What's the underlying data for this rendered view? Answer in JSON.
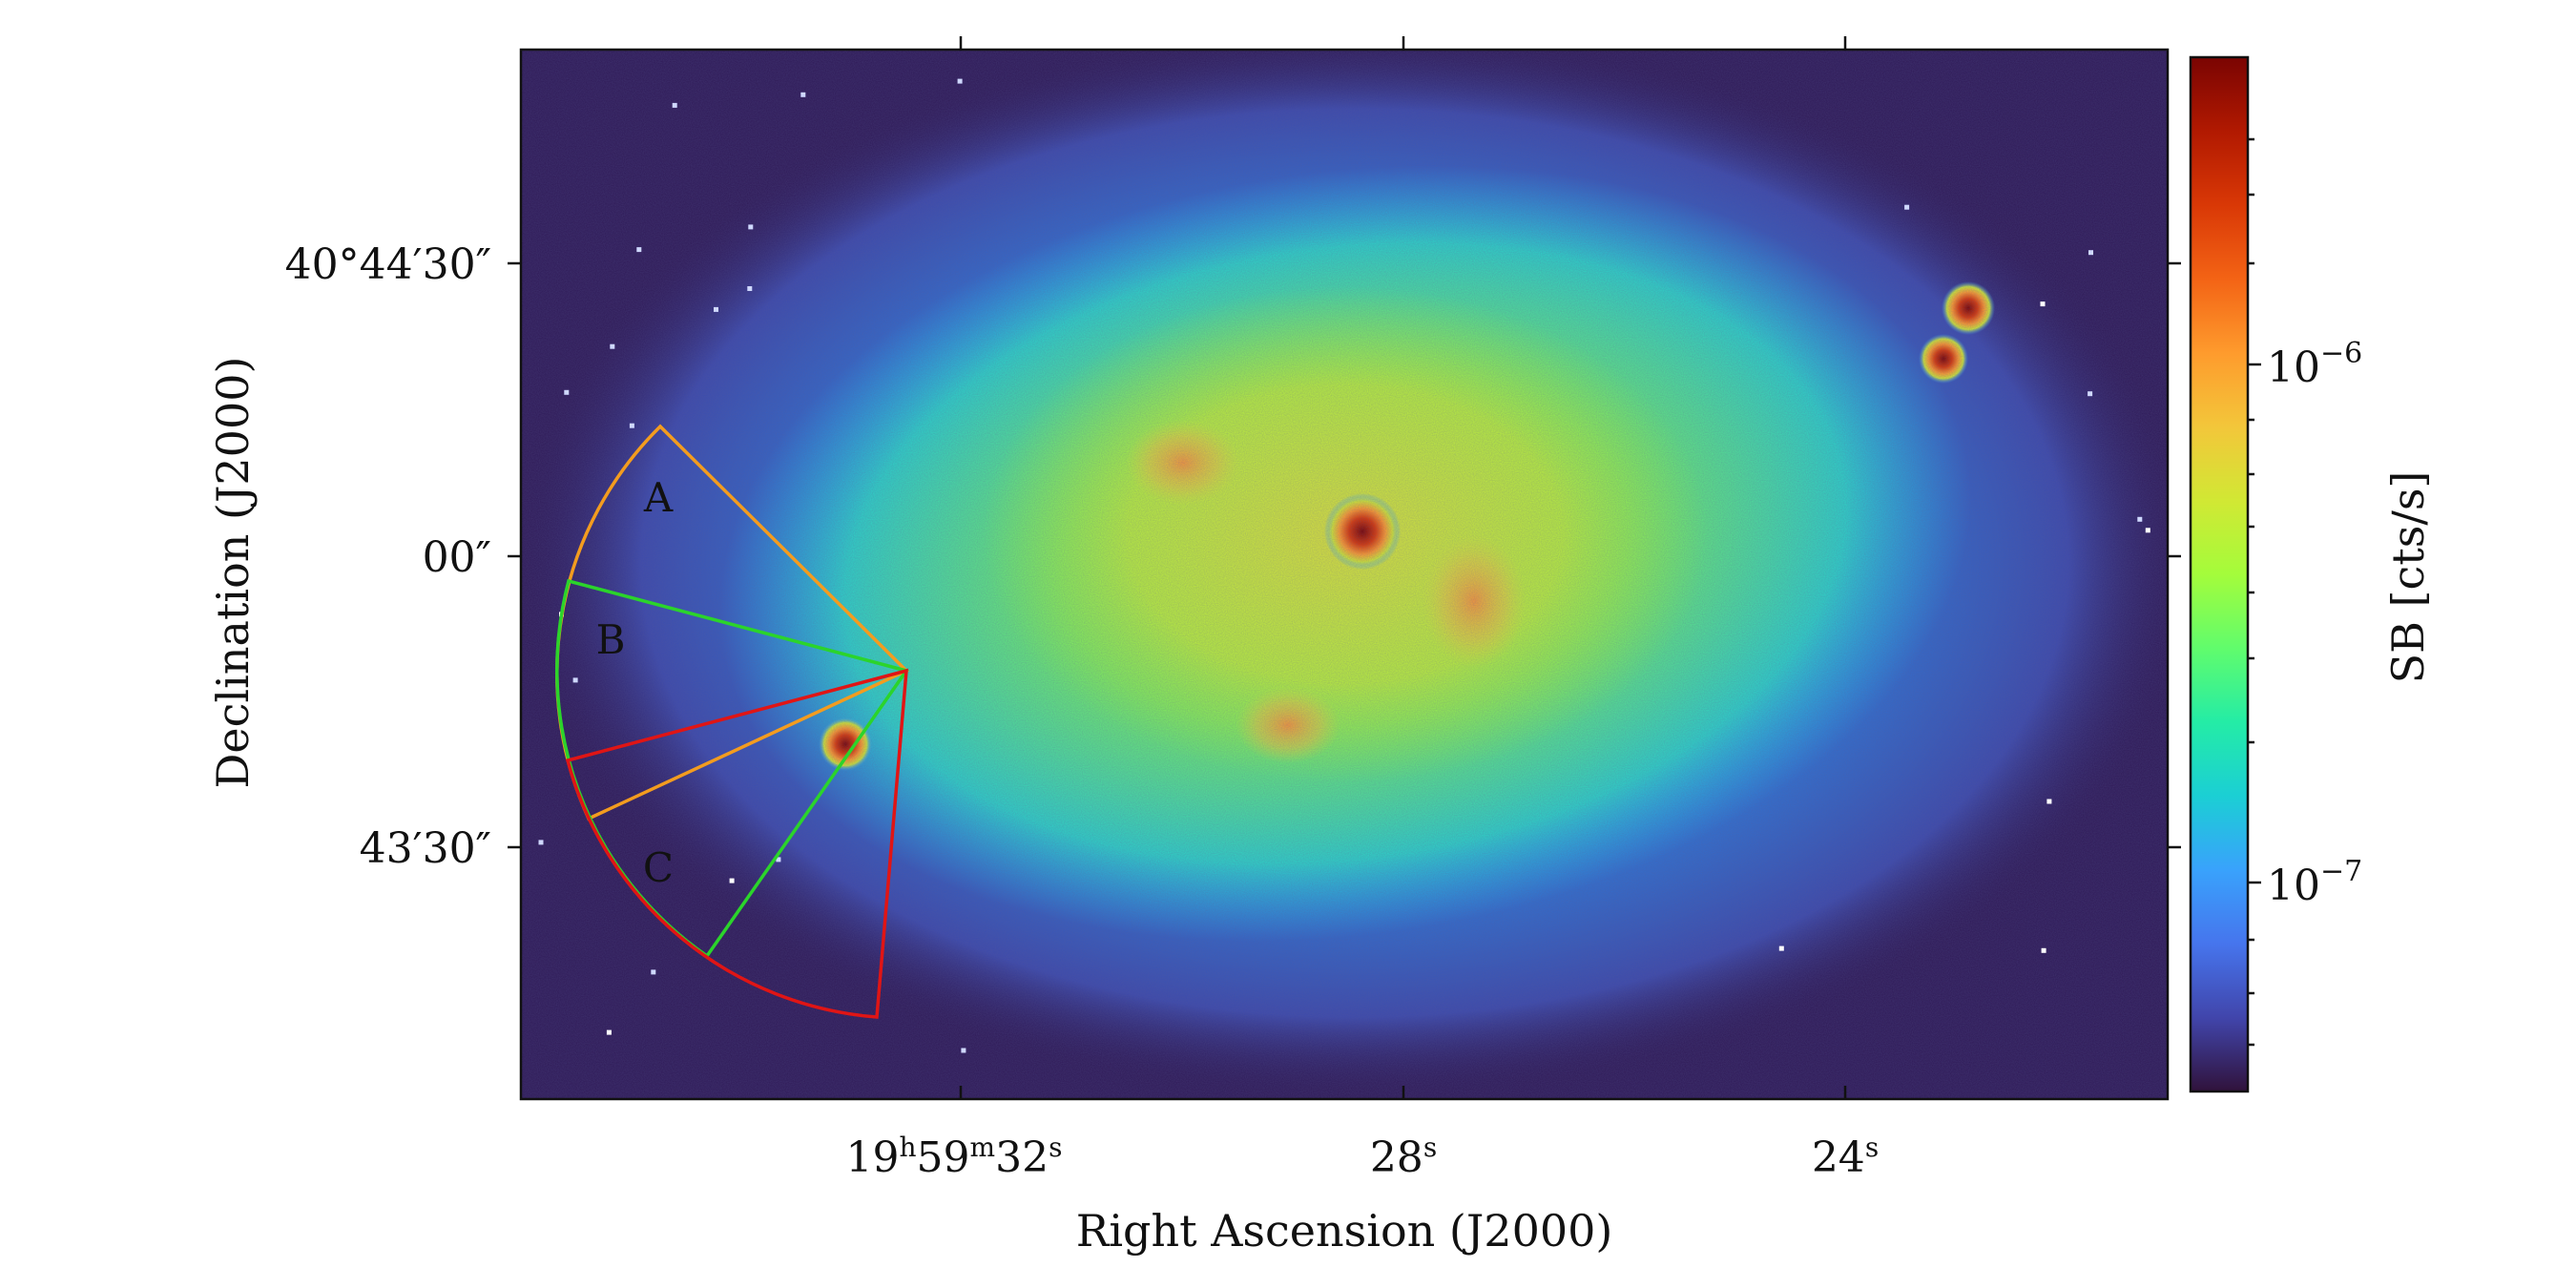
{
  "axes": {
    "xlabel": "Right Ascension (J2000)",
    "ylabel": "Declination (J2000)",
    "x_ticks": [
      {
        "main": "19",
        "sup1": "h",
        "mid": "59",
        "sup2": "m",
        "end": "32",
        "sup3": "s"
      },
      {
        "main": "28",
        "sup1": "s"
      },
      {
        "main": "24",
        "sup1": "s"
      }
    ],
    "y_ticks": [
      "40°44′30″",
      "00″",
      "43′30″"
    ]
  },
  "colorbar": {
    "label": "SB [cts/s]",
    "ticks": [
      {
        "base": "10",
        "exp": "−6"
      },
      {
        "base": "10",
        "exp": "−7"
      }
    ],
    "colors": [
      "#30123b",
      "#4145ab",
      "#4675ed",
      "#39a2fc",
      "#1bcfd4",
      "#24eca6",
      "#61fc6c",
      "#a4fc3b",
      "#d1e834",
      "#f3c63a",
      "#fe9b2d",
      "#f36315",
      "#d93806",
      "#b11901",
      "#7a0402"
    ]
  },
  "regions": [
    {
      "label": "A",
      "color": "#f39c1f"
    },
    {
      "label": "B",
      "color": "#2bd42b"
    },
    {
      "label": "C",
      "color": "#e01515"
    }
  ]
}
